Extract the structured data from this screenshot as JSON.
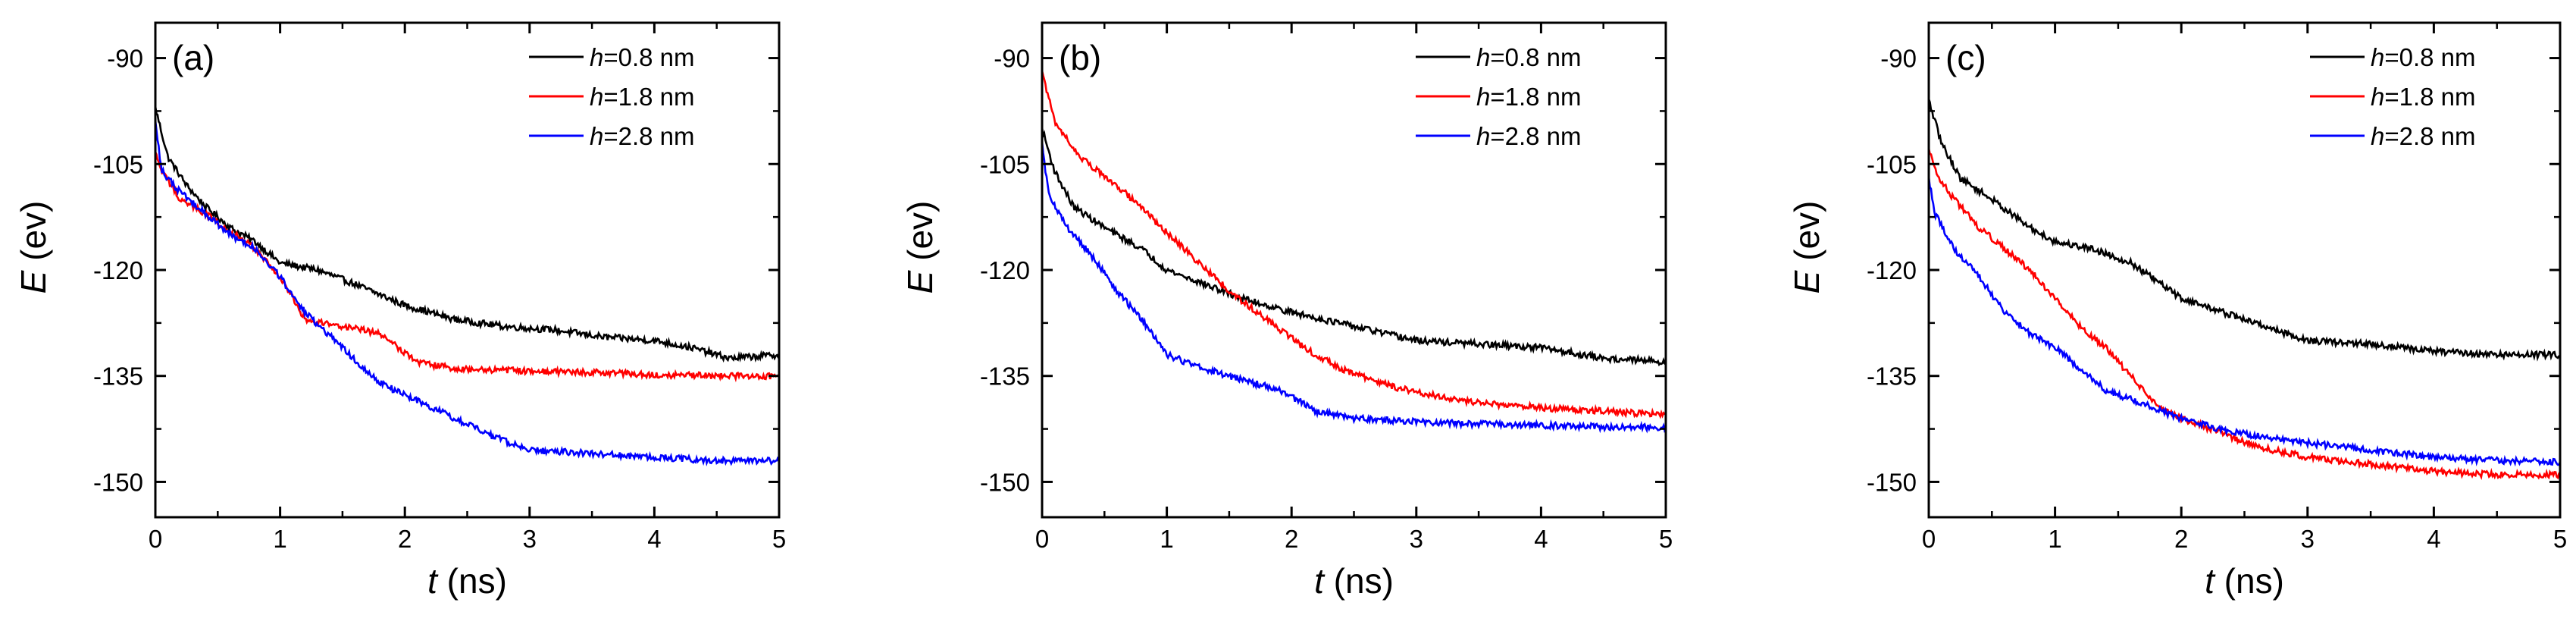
{
  "chart_data": [
    {
      "type": "line",
      "panel_label": "(a)",
      "xlabel_var": "t",
      "xlabel_unit": " (ns)",
      "ylabel_var": "E",
      "ylabel_unit": " (ev)",
      "xlim": [
        0,
        5
      ],
      "ylim": [
        -155,
        -85
      ],
      "xticks": [
        0,
        1,
        2,
        3,
        4,
        5
      ],
      "yticks": [
        -90,
        -105,
        -120,
        -135,
        -150
      ],
      "legend_position": "top-right",
      "series": [
        {
          "name": "h=0.8 nm",
          "legend_var": "h",
          "legend_rest": "=0.8 nm",
          "color": "#000000",
          "x": [
            0,
            0.1,
            0.25,
            0.4,
            0.6,
            0.8,
            1.0,
            1.3,
            1.6,
            2.0,
            2.4,
            2.8,
            3.2,
            3.6,
            4.0,
            4.3,
            4.6,
            5.0
          ],
          "y": [
            -97,
            -104,
            -108,
            -111,
            -114,
            -116,
            -119,
            -120,
            -122,
            -125,
            -127,
            -128,
            -128.5,
            -129.5,
            -130,
            -131,
            -132.5,
            -132
          ]
        },
        {
          "name": "h=1.8 nm",
          "legend_var": "h",
          "legend_rest": "=1.8 nm",
          "color": "#ff0000",
          "x": [
            0,
            0.05,
            0.2,
            0.4,
            0.6,
            0.8,
            1.0,
            1.2,
            1.5,
            1.8,
            2.1,
            2.4,
            3.0,
            3.5,
            4.0,
            4.5,
            5.0
          ],
          "y": [
            -103.5,
            -106,
            -110,
            -112,
            -114.5,
            -117,
            -121,
            -127,
            -128,
            -129,
            -133,
            -134,
            -134.3,
            -134.5,
            -134.8,
            -135,
            -135
          ]
        },
        {
          "name": "h=2.8 nm",
          "legend_var": "h",
          "legend_rest": "=2.8 nm",
          "color": "#0000ff",
          "x": [
            0,
            0.05,
            0.2,
            0.4,
            0.6,
            0.8,
            1.0,
            1.2,
            1.5,
            1.8,
            2.1,
            2.4,
            2.7,
            3.0,
            3.5,
            4.0,
            4.5,
            5.0
          ],
          "y": [
            -99,
            -106,
            -109,
            -112,
            -115,
            -117,
            -121,
            -126,
            -131,
            -136,
            -138.5,
            -141,
            -143.5,
            -145.5,
            -146,
            -146.5,
            -147,
            -147
          ]
        }
      ]
    },
    {
      "type": "line",
      "panel_label": "(b)",
      "xlabel_var": "t",
      "xlabel_unit": " (ns)",
      "ylabel_var": "E",
      "ylabel_unit": " (ev)",
      "xlim": [
        0,
        5
      ],
      "ylim": [
        -155,
        -85
      ],
      "xticks": [
        0,
        1,
        2,
        3,
        4,
        5
      ],
      "yticks": [
        -90,
        -105,
        -120,
        -135,
        -150
      ],
      "legend_position": "top-right",
      "series": [
        {
          "name": "h=0.8 nm",
          "legend_var": "h",
          "legend_rest": "=0.8 nm",
          "color": "#000000",
          "x": [
            0,
            0.1,
            0.25,
            0.5,
            0.8,
            1.0,
            1.3,
            1.6,
            2.0,
            2.5,
            3.0,
            3.5,
            4.0,
            4.5,
            5.0
          ],
          "y": [
            -100,
            -106,
            -111,
            -114,
            -117,
            -120,
            -122,
            -124,
            -126,
            -128,
            -130,
            -130.5,
            -131,
            -132.5,
            -133
          ]
        },
        {
          "name": "h=1.8 nm",
          "legend_var": "h",
          "legend_rest": "=1.8 nm",
          "color": "#ff0000",
          "x": [
            0,
            0.1,
            0.3,
            0.6,
            0.9,
            1.2,
            1.5,
            1.8,
            2.1,
            2.4,
            2.8,
            3.2,
            3.6,
            4.0,
            4.5,
            5.0
          ],
          "y": [
            -92,
            -99,
            -104,
            -108,
            -113,
            -118,
            -123,
            -127,
            -131,
            -134,
            -136.5,
            -138,
            -139,
            -139.5,
            -140,
            -140.5
          ]
        },
        {
          "name": "h=2.8 nm",
          "legend_var": "h",
          "legend_rest": "=2.8 nm",
          "color": "#0000ff",
          "x": [
            0,
            0.05,
            0.2,
            0.4,
            0.6,
            0.8,
            1.0,
            1.3,
            1.6,
            1.9,
            2.2,
            2.5,
            3.0,
            3.5,
            4.0,
            4.5,
            5.0
          ],
          "y": [
            -102,
            -109,
            -114,
            -118,
            -123,
            -127,
            -132,
            -134,
            -135.5,
            -137,
            -140,
            -141,
            -141.5,
            -141.8,
            -142,
            -142.2,
            -142.3
          ]
        }
      ]
    },
    {
      "type": "line",
      "panel_label": "(c)",
      "xlabel_var": "t",
      "xlabel_unit": " (ns)",
      "ylabel_var": "E",
      "ylabel_unit": " (ev)",
      "xlim": [
        0,
        5
      ],
      "ylim": [
        -155,
        -85
      ],
      "xticks": [
        0,
        1,
        2,
        3,
        4,
        5
      ],
      "yticks": [
        -90,
        -105,
        -120,
        -135,
        -150
      ],
      "legend_position": "top-right",
      "series": [
        {
          "name": "h=0.8 nm",
          "legend_var": "h",
          "legend_rest": "=0.8 nm",
          "color": "#000000",
          "x": [
            0,
            0.1,
            0.25,
            0.5,
            0.8,
            1.0,
            1.3,
            1.6,
            2.0,
            2.5,
            3.0,
            3.5,
            4.0,
            4.5,
            5.0
          ],
          "y": [
            -96,
            -102,
            -107,
            -110,
            -114,
            -116,
            -117,
            -119,
            -124,
            -127,
            -130,
            -130.5,
            -131.5,
            -132,
            -132
          ]
        },
        {
          "name": "h=1.8 nm",
          "legend_var": "h",
          "legend_rest": "=1.8 nm",
          "color": "#ff0000",
          "x": [
            0,
            0.05,
            0.2,
            0.4,
            0.6,
            0.8,
            1.0,
            1.2,
            1.4,
            1.6,
            1.8,
            2.0,
            2.3,
            2.6,
            3.0,
            3.5,
            4.0,
            4.5,
            5.0
          ],
          "y": [
            -103,
            -106,
            -110,
            -114,
            -117,
            -120,
            -124,
            -128,
            -131,
            -135,
            -139,
            -141,
            -143,
            -145,
            -146.5,
            -147.5,
            -148.5,
            -149,
            -149
          ]
        },
        {
          "name": "h=2.8 nm",
          "legend_var": "h",
          "legend_rest": "=2.8 nm",
          "color": "#0000ff",
          "x": [
            0,
            0.05,
            0.2,
            0.4,
            0.6,
            0.8,
            1.0,
            1.2,
            1.4,
            1.7,
            2.0,
            2.3,
            2.6,
            3.0,
            3.5,
            4.0,
            4.5,
            5.0
          ],
          "y": [
            -107,
            -112,
            -117,
            -121,
            -126,
            -129,
            -131,
            -134,
            -137,
            -139,
            -141,
            -142.5,
            -143.5,
            -144.5,
            -145.5,
            -146.5,
            -147,
            -147.2
          ]
        }
      ]
    }
  ]
}
